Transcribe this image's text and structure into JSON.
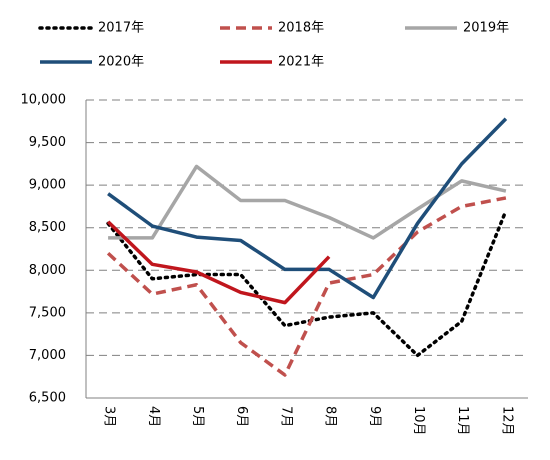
{
  "chart_data": {
    "type": "line",
    "categories": [
      "3月",
      "4月",
      "5月",
      "6月",
      "7月",
      "8月",
      "9月",
      "10月",
      "11月",
      "12月"
    ],
    "series": [
      {
        "name": "2017年",
        "color": "#000000",
        "style": "dotted",
        "values": [
          8550,
          7900,
          7950,
          7950,
          7350,
          7450,
          7500,
          7000,
          7400,
          8700
        ]
      },
      {
        "name": "2018年",
        "color": "#c0504d",
        "style": "dashed",
        "values": [
          8200,
          7720,
          7830,
          7150,
          6770,
          7850,
          7950,
          8450,
          8750,
          8850
        ]
      },
      {
        "name": "2019年",
        "color": "#a6a6a6",
        "style": "solid",
        "values": [
          8380,
          8380,
          9220,
          8820,
          8820,
          8620,
          8380,
          8720,
          9050,
          8930
        ]
      },
      {
        "name": "2020年",
        "color": "#1f4e79",
        "style": "solid",
        "values": [
          8900,
          8520,
          8390,
          8350,
          8010,
          8010,
          7680,
          8550,
          9250,
          9780
        ]
      },
      {
        "name": "2021年",
        "color": "#c0161d",
        "style": "solid",
        "values": [
          8570,
          8070,
          7980,
          7740,
          7620,
          8160,
          null,
          null,
          null,
          null
        ]
      }
    ],
    "ylim": [
      6500,
      10000
    ],
    "yticks": [
      {
        "value": 6500,
        "label": "6,500"
      },
      {
        "value": 7000,
        "label": "7,000"
      },
      {
        "value": 7500,
        "label": "7,500"
      },
      {
        "value": 8000,
        "label": "8,000"
      },
      {
        "value": 8500,
        "label": "8,500"
      },
      {
        "value": 9000,
        "label": "9,000"
      },
      {
        "value": 9500,
        "label": "9,500"
      },
      {
        "value": 10000,
        "label": "10,000"
      }
    ],
    "grid": true,
    "legend": "top"
  }
}
